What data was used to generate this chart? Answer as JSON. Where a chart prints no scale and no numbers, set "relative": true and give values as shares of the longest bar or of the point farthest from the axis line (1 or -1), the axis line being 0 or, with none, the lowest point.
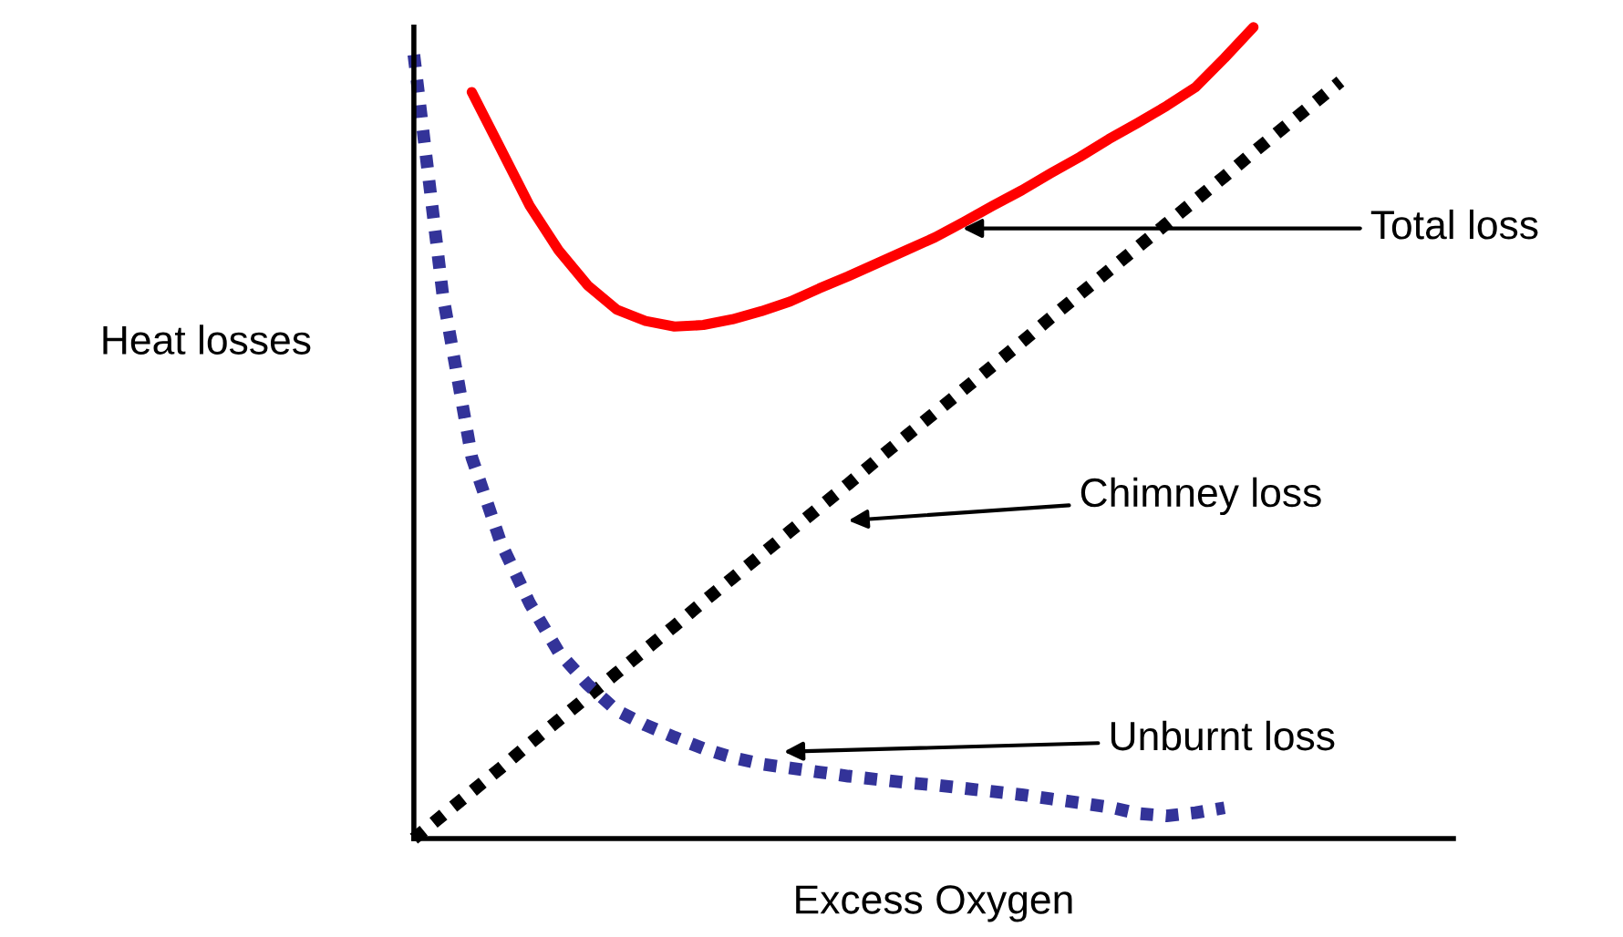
{
  "chart_data": {
    "type": "line",
    "relative": true,
    "xlabel": "Excess Oxygen",
    "ylabel": "Heat losses",
    "tick_labels": false,
    "legend": false,
    "categories": [
      null,
      null,
      null,
      null,
      null,
      null,
      null,
      null,
      null,
      null,
      null,
      null,
      null,
      null,
      null,
      null,
      null,
      null,
      null,
      null,
      null,
      null,
      null,
      null,
      null,
      null,
      null,
      null,
      null,
      null,
      null,
      null,
      null
    ],
    "series": [
      {
        "color": "#ff0000",
        "line_style": "solid",
        "values": [
          null,
          null,
          0.92,
          0.85,
          0.78,
          0.725,
          0.682,
          0.652,
          0.638,
          0.631,
          0.633,
          0.64,
          0.65,
          0.662,
          0.678,
          0.693,
          0.709,
          0.725,
          0.741,
          0.76,
          0.78,
          0.799,
          0.82,
          0.84,
          0.862,
          0.882,
          0.903,
          0.926,
          0.962,
          1.0,
          null,
          null,
          null
        ]
      },
      {
        "color": "#000000",
        "line_style": "dotted",
        "values": [
          0,
          0.029,
          0.058,
          0.087,
          0.117,
          0.146,
          0.175,
          0.204,
          0.233,
          0.262,
          0.292,
          0.321,
          0.35,
          0.379,
          0.408,
          0.437,
          0.467,
          0.496,
          0.525,
          0.554,
          0.583,
          0.612,
          0.642,
          0.671,
          0.7,
          0.729,
          0.758,
          0.787,
          0.816,
          0.846,
          0.875,
          0.904,
          0.933
        ]
      },
      {
        "color": "#333399",
        "line_style": "dotted",
        "values": [
          0.966,
          0.67,
          0.47,
          0.365,
          0.29,
          0.23,
          0.19,
          0.158,
          0.14,
          0.125,
          0.111,
          0.1,
          0.092,
          0.087,
          0.082,
          0.077,
          0.073,
          0.069,
          0.066,
          0.062,
          0.058,
          0.054,
          0.049,
          0.044,
          0.039,
          0.031,
          0.028,
          0.032,
          0.038,
          null,
          null,
          null,
          null
        ]
      }
    ],
    "annotations": [
      "Total loss",
      "Chimney loss",
      "Unburnt loss"
    ]
  }
}
